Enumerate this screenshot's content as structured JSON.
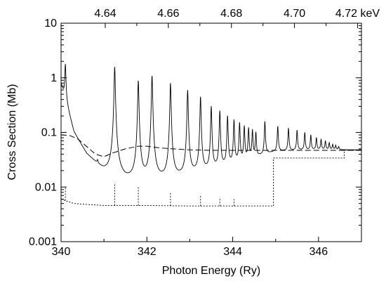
{
  "chart_data": {
    "type": "line",
    "title": "",
    "xlabel": "Photon Energy (Ry)",
    "ylabel": "Cross Section (Mb)",
    "xlim": [
      340,
      347
    ],
    "ylim": [
      0.001,
      10
    ],
    "yscale": "log",
    "grid": false,
    "x_ticks": [
      340,
      342,
      344,
      346
    ],
    "x_tick_labels": [
      "340",
      "342",
      "344",
      "346"
    ],
    "y_ticks": [
      0.001,
      0.01,
      0.1,
      1,
      10
    ],
    "y_tick_labels": [
      "0.001",
      "0.01",
      "0.1",
      "1",
      "10"
    ],
    "top_axis": {
      "unit": "keV",
      "ticks_ry": [
        341.03,
        342.5,
        343.97,
        345.44,
        346.91
      ],
      "tick_labels": [
        "4.64",
        "4.66",
        "4.68",
        "4.70",
        "4.72 keV"
      ]
    },
    "series": [
      {
        "style": "solid",
        "background": [
          [
            340.0,
            0.8
          ],
          [
            340.3,
            0.1
          ],
          [
            340.6,
            0.04
          ],
          [
            341.0,
            0.02
          ],
          [
            341.5,
            0.013
          ],
          [
            342.0,
            0.012
          ],
          [
            342.5,
            0.013
          ],
          [
            343.0,
            0.016
          ],
          [
            343.5,
            0.02
          ],
          [
            344.0,
            0.026
          ],
          [
            344.5,
            0.035
          ],
          [
            345.0,
            0.045
          ],
          [
            345.5,
            0.047
          ],
          [
            346.0,
            0.048
          ],
          [
            347.0,
            0.048
          ]
        ],
        "resonances": [
          {
            "x": 340.1,
            "y": 1.8
          },
          {
            "x": 340.85,
            "y": 0.03
          },
          {
            "x": 341.25,
            "y": 1.6
          },
          {
            "x": 341.8,
            "y": 0.9
          },
          {
            "x": 342.12,
            "y": 1.1
          },
          {
            "x": 342.55,
            "y": 0.8
          },
          {
            "x": 342.95,
            "y": 0.6
          },
          {
            "x": 343.25,
            "y": 0.45
          },
          {
            "x": 343.5,
            "y": 0.3
          },
          {
            "x": 343.7,
            "y": 0.25
          },
          {
            "x": 343.88,
            "y": 0.2
          },
          {
            "x": 344.03,
            "y": 0.17
          },
          {
            "x": 344.16,
            "y": 0.15
          },
          {
            "x": 344.27,
            "y": 0.13
          },
          {
            "x": 344.37,
            "y": 0.12
          },
          {
            "x": 344.46,
            "y": 0.11
          },
          {
            "x": 344.54,
            "y": 0.1
          },
          {
            "x": 344.75,
            "y": 0.16
          },
          {
            "x": 345.05,
            "y": 0.13
          },
          {
            "x": 345.3,
            "y": 0.12
          },
          {
            "x": 345.5,
            "y": 0.11
          },
          {
            "x": 345.68,
            "y": 0.1
          },
          {
            "x": 345.82,
            "y": 0.09
          },
          {
            "x": 345.95,
            "y": 0.08
          },
          {
            "x": 346.06,
            "y": 0.075
          },
          {
            "x": 346.16,
            "y": 0.07
          },
          {
            "x": 346.25,
            "y": 0.065
          },
          {
            "x": 346.33,
            "y": 0.06
          },
          {
            "x": 346.4,
            "y": 0.058
          },
          {
            "x": 346.47,
            "y": 0.055
          }
        ]
      },
      {
        "style": "dashed",
        "points": [
          [
            340.0,
            0.09
          ],
          [
            340.2,
            0.088
          ],
          [
            340.4,
            0.075
          ],
          [
            340.6,
            0.055
          ],
          [
            340.8,
            0.04
          ],
          [
            341.0,
            0.036
          ],
          [
            341.2,
            0.042
          ],
          [
            341.5,
            0.05
          ],
          [
            341.8,
            0.056
          ],
          [
            342.0,
            0.056
          ],
          [
            342.3,
            0.052
          ],
          [
            342.6,
            0.05
          ],
          [
            343.0,
            0.048
          ],
          [
            343.5,
            0.047
          ],
          [
            344.0,
            0.047
          ],
          [
            344.5,
            0.047
          ],
          [
            345.0,
            0.047
          ],
          [
            346.0,
            0.047
          ],
          [
            347.0,
            0.047
          ]
        ]
      },
      {
        "style": "dotted",
        "points": [
          [
            340.0,
            0.006
          ],
          [
            340.3,
            0.005
          ],
          [
            340.6,
            0.0048
          ],
          [
            341.0,
            0.0046
          ],
          [
            341.5,
            0.0046
          ],
          [
            342.0,
            0.0046
          ],
          [
            343.0,
            0.0045
          ],
          [
            344.0,
            0.0045
          ],
          [
            344.95,
            0.0045
          ],
          [
            344.95,
            0.034
          ],
          [
            346.6,
            0.034
          ],
          [
            346.6,
            0.047
          ],
          [
            347.0,
            0.047
          ]
        ],
        "spikes": [
          [
            340.1,
            0.01
          ],
          [
            341.25,
            0.012
          ],
          [
            341.8,
            0.01
          ],
          [
            342.55,
            0.008
          ],
          [
            343.25,
            0.007
          ],
          [
            343.7,
            0.0065
          ],
          [
            344.03,
            0.006
          ]
        ]
      }
    ]
  }
}
